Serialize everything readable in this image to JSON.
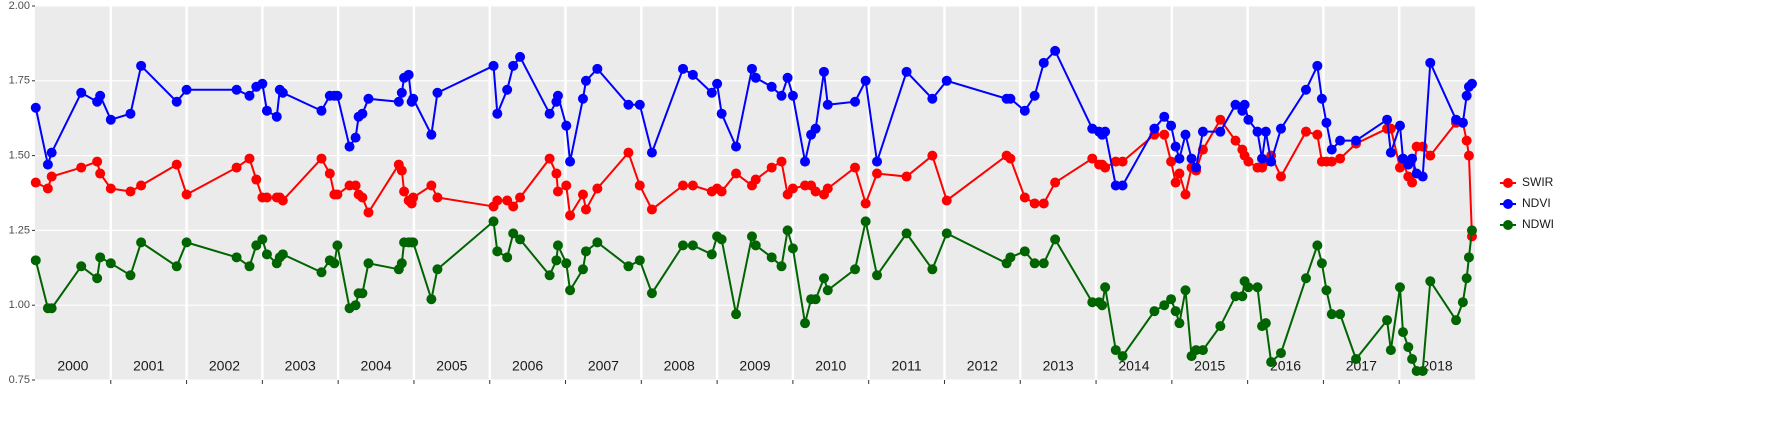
{
  "chart_data": {
    "type": "line",
    "xlim": [
      2000,
      2019
    ],
    "ylim": [
      0.75,
      2.0
    ],
    "yticks": [
      0.75,
      {
        "value": 1,
        "label": "1.00"
      },
      1.25,
      {
        "value": 1.5,
        "label": "1.50"
      },
      1.75,
      {
        "value": 2,
        "label": "2.00"
      }
    ],
    "xticks": [
      {
        "value": 2000.5,
        "label": "2000"
      },
      {
        "value": 2001.5,
        "label": "2001"
      },
      {
        "value": 2002.5,
        "label": "2002"
      },
      {
        "value": 2003.5,
        "label": "2003"
      },
      {
        "value": 2004.5,
        "label": "2004"
      },
      {
        "value": 2005.5,
        "label": "2005"
      },
      {
        "value": 2006.5,
        "label": "2006"
      },
      {
        "value": 2007.5,
        "label": "2007"
      },
      {
        "value": 2008.5,
        "label": "2008"
      },
      {
        "value": 2009.5,
        "label": "2009"
      },
      {
        "value": 2010.5,
        "label": "2010"
      },
      {
        "value": 2011.5,
        "label": "2011"
      },
      {
        "value": 2012.5,
        "label": "2012"
      },
      {
        "value": 2013.5,
        "label": "2013"
      },
      {
        "value": 2014.5,
        "label": "2014"
      },
      {
        "value": 2015.5,
        "label": "2015"
      },
      {
        "value": 2016.5,
        "label": "2016"
      },
      {
        "value": 2017.5,
        "label": "2017"
      },
      {
        "value": 2018.5,
        "label": "2018"
      }
    ],
    "xgrid": [
      2001,
      2002,
      2003,
      2004,
      2005,
      2006,
      2007,
      2008,
      2009,
      2010,
      2011,
      2012,
      2013,
      2014,
      2015,
      2016,
      2017,
      2018
    ],
    "grid": true,
    "legend": "right",
    "x": [
      2000.01,
      2000.17,
      2000.22,
      2000.61,
      2000.82,
      2000.86,
      2001.0,
      2001.26,
      2001.4,
      2001.87,
      2002.0,
      2002.66,
      2002.83,
      2002.92,
      2003.0,
      2003.06,
      2003.19,
      2003.23,
      2003.27,
      2003.78,
      2003.89,
      2003.95,
      2003.99,
      2004.15,
      2004.23,
      2004.27,
      2004.32,
      2004.4,
      2004.8,
      2004.84,
      2004.87,
      2004.93,
      2004.97,
      2004.99,
      2005.23,
      2005.31,
      2006.05,
      2006.1,
      2006.23,
      2006.31,
      2006.4,
      2006.79,
      2006.88,
      2006.9,
      2007.01,
      2007.06,
      2007.23,
      2007.27,
      2007.42,
      2007.83,
      2007.98,
      2008.14,
      2008.55,
      2008.68,
      2008.93,
      2009.0,
      2009.06,
      2009.25,
      2009.46,
      2009.51,
      2009.72,
      2009.85,
      2009.93,
      2010.0,
      2010.16,
      2010.24,
      2010.3,
      2010.41,
      2010.46,
      2010.82,
      2010.96,
      2011.11,
      2011.5,
      2011.84,
      2012.03,
      2012.82,
      2012.87,
      2013.06,
      2013.19,
      2013.31,
      2013.46,
      2013.95,
      2014.04,
      2014.08,
      2014.12,
      2014.26,
      2014.35,
      2014.77,
      2014.9,
      2014.99,
      2015.05,
      2015.1,
      2015.18,
      2015.26,
      2015.32,
      2015.41,
      2015.64,
      2015.84,
      2015.93,
      2015.96,
      2016.01,
      2016.13,
      2016.19,
      2016.24,
      2016.31,
      2016.44,
      2016.77,
      2016.92,
      2016.98,
      2017.04,
      2017.11,
      2017.22,
      2017.43,
      2017.84,
      2017.89,
      2018.01,
      2018.05,
      2018.12,
      2018.17,
      2018.23,
      2018.31,
      2018.41,
      2018.75,
      2018.84,
      2018.89,
      2018.92,
      2018.96
    ],
    "series": [
      {
        "name": "SWIR",
        "color": "#ff0000",
        "values": [
          1.41,
          1.39,
          1.43,
          1.46,
          1.48,
          1.44,
          1.39,
          1.38,
          1.4,
          1.47,
          1.37,
          1.46,
          1.49,
          1.42,
          1.36,
          1.36,
          1.36,
          1.36,
          1.35,
          1.49,
          1.44,
          1.37,
          1.37,
          1.4,
          1.4,
          1.37,
          1.36,
          1.31,
          1.47,
          1.45,
          1.38,
          1.35,
          1.34,
          1.36,
          1.4,
          1.36,
          1.33,
          1.35,
          1.35,
          1.33,
          1.36,
          1.49,
          1.44,
          1.38,
          1.4,
          1.3,
          1.37,
          1.32,
          1.39,
          1.51,
          1.4,
          1.32,
          1.4,
          1.4,
          1.38,
          1.39,
          1.38,
          1.44,
          1.4,
          1.42,
          1.46,
          1.48,
          1.37,
          1.39,
          1.4,
          1.4,
          1.38,
          1.37,
          1.39,
          1.46,
          1.34,
          1.44,
          1.43,
          1.5,
          1.35,
          1.5,
          1.49,
          1.36,
          1.34,
          1.34,
          1.41,
          1.49,
          1.47,
          1.47,
          1.46,
          1.48,
          1.48,
          1.57,
          1.57,
          1.48,
          1.41,
          1.44,
          1.37,
          1.46,
          1.45,
          1.52,
          1.62,
          1.55,
          1.52,
          1.5,
          1.48,
          1.46,
          1.46,
          1.48,
          1.5,
          1.43,
          1.58,
          1.57,
          1.48,
          1.48,
          1.48,
          1.49,
          1.54,
          1.59,
          1.59,
          1.46,
          1.48,
          1.43,
          1.41,
          1.53,
          1.53,
          1.5,
          1.61,
          1.61,
          1.55,
          1.5,
          1.23
        ]
      },
      {
        "name": "NDVI",
        "color": "#0000ff",
        "values": [
          1.66,
          1.47,
          1.51,
          1.71,
          1.68,
          1.7,
          1.62,
          1.64,
          1.8,
          1.68,
          1.72,
          1.72,
          1.7,
          1.73,
          1.74,
          1.65,
          1.63,
          1.72,
          1.71,
          1.65,
          1.7,
          1.7,
          1.7,
          1.53,
          1.56,
          1.63,
          1.64,
          1.69,
          1.68,
          1.71,
          1.76,
          1.77,
          1.68,
          1.69,
          1.57,
          1.71,
          1.8,
          1.64,
          1.72,
          1.8,
          1.83,
          1.64,
          1.68,
          1.7,
          1.6,
          1.48,
          1.69,
          1.75,
          1.79,
          1.67,
          1.67,
          1.51,
          1.79,
          1.77,
          1.71,
          1.74,
          1.64,
          1.53,
          1.79,
          1.76,
          1.73,
          1.7,
          1.76,
          1.7,
          1.48,
          1.57,
          1.59,
          1.78,
          1.67,
          1.68,
          1.75,
          1.48,
          1.78,
          1.69,
          1.75,
          1.69,
          1.69,
          1.65,
          1.7,
          1.81,
          1.85,
          1.59,
          1.58,
          1.57,
          1.58,
          1.4,
          1.4,
          1.59,
          1.63,
          1.6,
          1.53,
          1.49,
          1.57,
          1.49,
          1.46,
          1.58,
          1.58,
          1.67,
          1.65,
          1.67,
          1.62,
          1.58,
          1.49,
          1.58,
          1.48,
          1.59,
          1.72,
          1.8,
          1.69,
          1.61,
          1.52,
          1.55,
          1.55,
          1.62,
          1.51,
          1.6,
          1.49,
          1.47,
          1.49,
          1.44,
          1.43,
          1.81,
          1.62,
          1.61,
          1.7,
          1.73,
          1.74
        ]
      },
      {
        "name": "NDWI",
        "color": "#006400",
        "values": [
          1.15,
          0.99,
          0.99,
          1.13,
          1.09,
          1.16,
          1.14,
          1.1,
          1.21,
          1.13,
          1.21,
          1.16,
          1.13,
          1.2,
          1.22,
          1.17,
          1.14,
          1.16,
          1.17,
          1.11,
          1.15,
          1.14,
          1.2,
          0.99,
          1.0,
          1.04,
          1.04,
          1.14,
          1.12,
          1.14,
          1.21,
          1.21,
          1.21,
          1.21,
          1.02,
          1.12,
          1.28,
          1.18,
          1.16,
          1.24,
          1.22,
          1.1,
          1.15,
          1.2,
          1.14,
          1.05,
          1.12,
          1.18,
          1.21,
          1.13,
          1.15,
          1.04,
          1.2,
          1.2,
          1.17,
          1.23,
          1.22,
          0.97,
          1.23,
          1.2,
          1.16,
          1.13,
          1.25,
          1.19,
          0.94,
          1.02,
          1.02,
          1.09,
          1.05,
          1.12,
          1.28,
          1.1,
          1.24,
          1.12,
          1.24,
          1.14,
          1.16,
          1.18,
          1.14,
          1.14,
          1.22,
          1.01,
          1.01,
          1.0,
          1.06,
          0.85,
          0.83,
          0.98,
          1.0,
          1.02,
          0.98,
          0.94,
          1.05,
          0.83,
          0.85,
          0.85,
          0.93,
          1.03,
          1.03,
          1.08,
          1.06,
          1.06,
          0.93,
          0.94,
          0.81,
          0.84,
          1.09,
          1.2,
          1.14,
          1.05,
          0.97,
          0.97,
          0.82,
          0.95,
          0.85,
          1.06,
          0.91,
          0.86,
          0.82,
          0.78,
          0.78,
          1.08,
          0.95,
          1.01,
          1.09,
          1.16,
          1.25
        ]
      }
    ]
  }
}
